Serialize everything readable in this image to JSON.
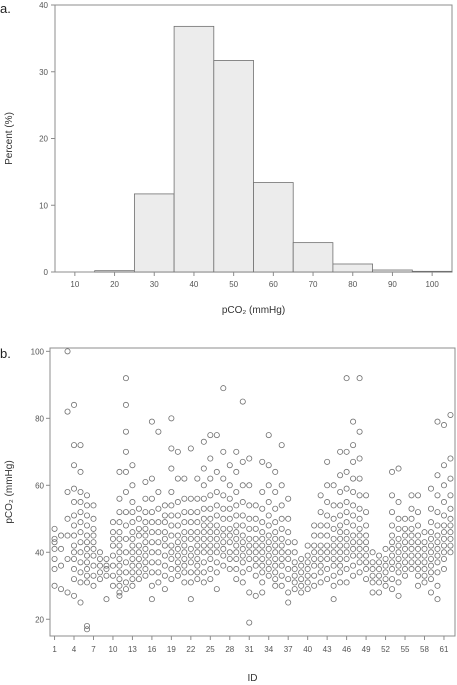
{
  "chart_data": [
    {
      "panel_label": "a.",
      "type": "bar",
      "xlabel": "pCO₂ (mmHg)",
      "ylabel": "Percent (%)",
      "bin_edges": [
        15,
        25,
        35,
        45,
        55,
        65,
        75,
        85,
        95,
        105
      ],
      "values": [
        0.2,
        11.7,
        36.8,
        31.7,
        13.4,
        4.4,
        1.2,
        0.3,
        0.1
      ],
      "x_ticks": [
        "10",
        "20",
        "30",
        "40",
        "50",
        "60",
        "70",
        "80",
        "90",
        "100"
      ],
      "y_ticks": [
        "0",
        "10",
        "20",
        "30",
        "40"
      ],
      "xlim": [
        5,
        105
      ],
      "ylim": [
        0,
        40
      ],
      "grid": false,
      "bar_fill": "#ececec",
      "bar_stroke": "#707070"
    },
    {
      "panel_label": "b.",
      "type": "scatter",
      "xlabel": "ID",
      "ylabel": "pCO₂ (mmHg)",
      "x_ticks": [
        "1",
        "4",
        "7",
        "10",
        "13",
        "16",
        "19",
        "22",
        "25",
        "28",
        "31",
        "34",
        "37",
        "40",
        "43",
        "46",
        "49",
        "52",
        "55",
        "58",
        "61"
      ],
      "y_ticks": [
        "20",
        "40",
        "60",
        "80",
        "100"
      ],
      "ylim": [
        15,
        101
      ],
      "xlim": [
        0.3,
        62.7
      ],
      "grid": false,
      "marker": "open-circle",
      "marker_color": "#707070",
      "points_per_id": [
        {
          "id": 1,
          "y": [
            47,
            44,
            43,
            41,
            38,
            35,
            30
          ]
        },
        {
          "id": 2,
          "y": [
            45,
            41,
            36,
            29
          ]
        },
        {
          "id": 3,
          "y": [
            100,
            82,
            58,
            50,
            45,
            38,
            28
          ]
        },
        {
          "id": 4,
          "y": [
            84,
            72,
            66,
            59,
            55,
            51,
            48,
            45,
            42,
            40,
            38,
            35,
            32,
            27
          ]
        },
        {
          "id": 5,
          "y": [
            72,
            64,
            58,
            55,
            52,
            49,
            46,
            43,
            40,
            37,
            34,
            31,
            25
          ]
        },
        {
          "id": 6,
          "y": [
            57,
            54,
            51,
            48,
            45,
            43,
            41,
            39,
            37,
            35,
            33,
            31,
            18,
            17
          ]
        },
        {
          "id": 7,
          "y": [
            54,
            50,
            47,
            45,
            43,
            41,
            39,
            36,
            33,
            30
          ]
        },
        {
          "id": 8,
          "y": [
            40,
            38,
            36,
            34,
            32
          ]
        },
        {
          "id": 9,
          "y": [
            38,
            36,
            35,
            33,
            26
          ]
        },
        {
          "id": 10,
          "y": [
            49,
            46,
            44,
            42,
            39,
            36,
            33,
            30
          ]
        },
        {
          "id": 11,
          "y": [
            64,
            56,
            52,
            49,
            46,
            44,
            42,
            40,
            38,
            36,
            34,
            32,
            30,
            28,
            27
          ]
        },
        {
          "id": 12,
          "y": [
            92,
            84,
            76,
            70,
            64,
            58,
            52,
            48,
            44,
            40,
            37,
            34,
            31,
            29
          ]
        },
        {
          "id": 13,
          "y": [
            66,
            60,
            55,
            52,
            49,
            46,
            44,
            42,
            40,
            38,
            36,
            34,
            32,
            30
          ]
        },
        {
          "id": 14,
          "y": [
            53,
            50,
            47,
            45,
            42,
            40,
            38,
            36,
            34,
            32
          ]
        },
        {
          "id": 15,
          "y": [
            61,
            56,
            52,
            49,
            47,
            45,
            43,
            41,
            39,
            37,
            35,
            33
          ]
        },
        {
          "id": 16,
          "y": [
            79,
            62,
            56,
            52,
            49,
            46,
            43,
            40,
            37,
            34,
            30,
            26
          ]
        },
        {
          "id": 17,
          "y": [
            76,
            58,
            53,
            49,
            46,
            43,
            40,
            37,
            34,
            31
          ]
        },
        {
          "id": 18,
          "y": [
            54,
            51,
            49,
            46,
            44,
            42,
            39,
            36,
            33,
            29
          ]
        },
        {
          "id": 19,
          "y": [
            80,
            71,
            65,
            58,
            54,
            51,
            48,
            45,
            42,
            40,
            38,
            35,
            32
          ]
        },
        {
          "id": 20,
          "y": [
            70,
            62,
            55,
            51,
            48,
            45,
            43,
            41,
            39,
            37,
            35,
            33
          ]
        },
        {
          "id": 21,
          "y": [
            62,
            56,
            52,
            49,
            46,
            44,
            42,
            40,
            38,
            36,
            34,
            31
          ]
        },
        {
          "id": 22,
          "y": [
            71,
            56,
            52,
            49,
            46,
            44,
            41,
            39,
            37,
            34,
            31,
            26
          ]
        },
        {
          "id": 23,
          "y": [
            62,
            56,
            52,
            49,
            46,
            44,
            42,
            40,
            38,
            36,
            34,
            32
          ]
        },
        {
          "id": 24,
          "y": [
            73,
            65,
            60,
            56,
            53,
            50,
            48,
            46,
            44,
            42,
            40,
            37,
            34,
            31
          ]
        },
        {
          "id": 25,
          "y": [
            75,
            68,
            62,
            57,
            53,
            50,
            48,
            46,
            44,
            42,
            40,
            38,
            35,
            32
          ]
        },
        {
          "id": 26,
          "y": [
            75,
            64,
            58,
            54,
            51,
            48,
            46,
            44,
            42,
            40,
            37,
            34,
            29
          ]
        },
        {
          "id": 27,
          "y": [
            89,
            70,
            62,
            57,
            53,
            50,
            47,
            45,
            43,
            41,
            39,
            36
          ]
        },
        {
          "id": 28,
          "y": [
            66,
            60,
            56,
            53,
            50,
            47,
            45,
            43,
            40,
            38,
            35
          ]
        },
        {
          "id": 29,
          "y": [
            70,
            64,
            58,
            54,
            51,
            48,
            46,
            44,
            42,
            40,
            38,
            35,
            32
          ]
        },
        {
          "id": 30,
          "y": [
            85,
            67,
            60,
            55,
            51,
            48,
            45,
            43,
            41,
            39,
            37,
            34,
            31
          ]
        },
        {
          "id": 31,
          "y": [
            68,
            60,
            54,
            50,
            47,
            44,
            42,
            40,
            38,
            35,
            28,
            19
          ]
        },
        {
          "id": 32,
          "y": [
            54,
            50,
            47,
            44,
            42,
            40,
            38,
            36,
            33,
            27
          ]
        },
        {
          "id": 33,
          "y": [
            67,
            58,
            53,
            49,
            46,
            44,
            42,
            40,
            38,
            36,
            34,
            31,
            28
          ]
        },
        {
          "id": 34,
          "y": [
            75,
            66,
            60,
            55,
            51,
            48,
            45,
            43,
            41,
            39,
            37,
            35,
            33
          ]
        },
        {
          "id": 35,
          "y": [
            64,
            58,
            53,
            49,
            46,
            44,
            42,
            40,
            38,
            36,
            34,
            32,
            30
          ]
        },
        {
          "id": 36,
          "y": [
            72,
            60,
            54,
            50,
            47,
            44,
            42,
            40,
            38,
            36,
            33,
            30
          ]
        },
        {
          "id": 37,
          "y": [
            56,
            50,
            46,
            43,
            40,
            38,
            35,
            32,
            28,
            25
          ]
        },
        {
          "id": 38,
          "y": [
            43,
            40,
            37,
            35,
            33,
            31,
            29
          ]
        },
        {
          "id": 39,
          "y": [
            38,
            36,
            34,
            32,
            30,
            28
          ]
        },
        {
          "id": 40,
          "y": [
            42,
            39,
            37,
            35,
            33,
            31,
            29
          ]
        },
        {
          "id": 41,
          "y": [
            48,
            45,
            42,
            40,
            38,
            36,
            33,
            30
          ]
        },
        {
          "id": 42,
          "y": [
            57,
            52,
            48,
            45,
            42,
            40,
            38,
            36,
            34,
            31
          ]
        },
        {
          "id": 43,
          "y": [
            67,
            60,
            55,
            51,
            48,
            45,
            42,
            40,
            38,
            35,
            32
          ]
        },
        {
          "id": 44,
          "y": [
            60,
            54,
            50,
            47,
            44,
            42,
            40,
            38,
            36,
            33,
            30,
            26
          ]
        },
        {
          "id": 45,
          "y": [
            70,
            63,
            58,
            54,
            51,
            48,
            46,
            44,
            42,
            40,
            38,
            36,
            34,
            31
          ]
        },
        {
          "id": 46,
          "y": [
            92,
            70,
            64,
            59,
            55,
            52,
            49,
            46,
            44,
            42,
            40,
            38,
            35,
            31
          ]
        },
        {
          "id": 47,
          "y": [
            79,
            72,
            67,
            62,
            58,
            54,
            51,
            48,
            45,
            43,
            41,
            39,
            36,
            33
          ]
        },
        {
          "id": 48,
          "y": [
            92,
            76,
            68,
            62,
            57,
            53,
            50,
            47,
            45,
            43,
            41,
            39,
            37,
            34
          ]
        },
        {
          "id": 49,
          "y": [
            57,
            52,
            48,
            45,
            43,
            41,
            39,
            37,
            35,
            32
          ]
        },
        {
          "id": 50,
          "y": [
            40,
            37,
            35,
            33,
            31,
            28
          ]
        },
        {
          "id": 51,
          "y": [
            39,
            37,
            35,
            33,
            31,
            28
          ]
        },
        {
          "id": 52,
          "y": [
            41,
            38,
            36,
            34,
            32,
            30
          ]
        },
        {
          "id": 53,
          "y": [
            64,
            57,
            52,
            48,
            45,
            43,
            41,
            39,
            37,
            35,
            32,
            29
          ]
        },
        {
          "id": 54,
          "y": [
            65,
            55,
            50,
            47,
            44,
            42,
            40,
            38,
            36,
            34,
            31,
            27
          ]
        },
        {
          "id": 55,
          "y": [
            50,
            47,
            45,
            43,
            41,
            39,
            37,
            35,
            33
          ]
        },
        {
          "id": 56,
          "y": [
            57,
            53,
            50,
            47,
            45,
            43,
            41,
            39,
            37,
            35
          ]
        },
        {
          "id": 57,
          "y": [
            57,
            52,
            48,
            45,
            43,
            41,
            39,
            37,
            35,
            33,
            30
          ]
        },
        {
          "id": 58,
          "y": [
            46,
            43,
            41,
            39,
            37,
            35,
            33,
            31
          ]
        },
        {
          "id": 59,
          "y": [
            59,
            53,
            49,
            46,
            44,
            42,
            40,
            38,
            36,
            34,
            32,
            28
          ]
        },
        {
          "id": 60,
          "y": [
            79,
            63,
            57,
            52,
            48,
            45,
            43,
            41,
            39,
            37,
            34,
            30,
            26
          ]
        },
        {
          "id": 61,
          "y": [
            78,
            66,
            60,
            55,
            51,
            48,
            46,
            44,
            42,
            40,
            38,
            35
          ]
        },
        {
          "id": 62,
          "y": [
            81,
            68,
            62,
            57,
            53,
            50,
            48,
            46,
            44,
            42,
            40
          ]
        }
      ]
    }
  ]
}
